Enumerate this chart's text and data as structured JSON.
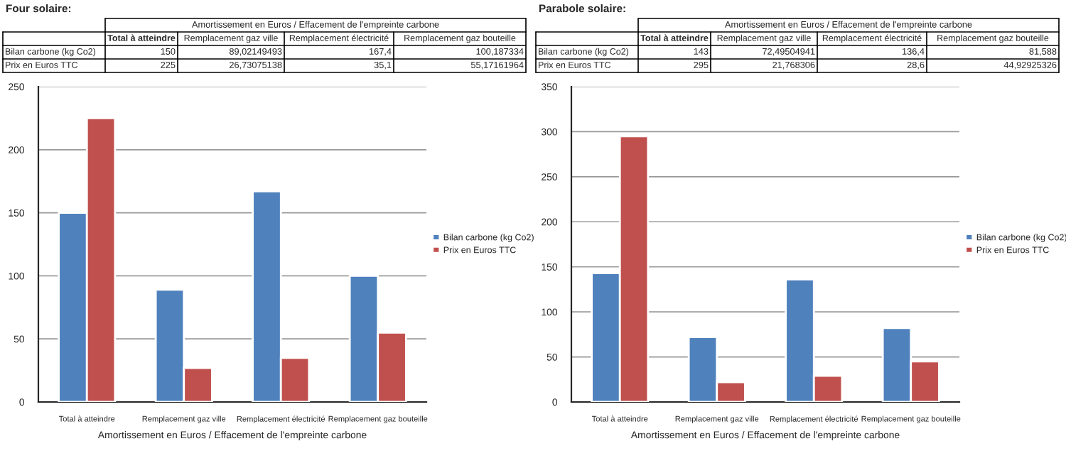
{
  "chart_data": [
    {
      "type": "other",
      "title": "Four solaire:",
      "subtitle": "Amortissement en Euros / Effacement de l'empreinte carbone",
      "categories": [
        "Total à atteindre",
        "Remplacement gaz ville",
        "Remplacement électricité",
        "Remplacement gaz bouteille"
      ],
      "annotations": [
        "Bilan carbone (kg Co2)",
        "150",
        "89,02149493",
        "167,4",
        "100,187334",
        "Prix en Euros TTC",
        "225",
        "26,73075138",
        "35,1",
        "55,17161964"
      ]
    },
    {
      "type": "bar",
      "xlabel": "Amortissement en Euros / Effacement de l'empreinte carbone",
      "categories": [
        "Total à atteindre",
        "Remplacement gaz ville",
        "Remplacement électricité",
        "Remplacement gaz bouteille"
      ],
      "series": [
        {
          "name": "Bilan carbone (kg Co2)",
          "color": "#4f81bd",
          "values": [
            150,
            89,
            167,
            100
          ]
        },
        {
          "name": "Prix en Euros TTC",
          "color": "#c0504d",
          "values": [
            225,
            27,
            35,
            55
          ]
        }
      ],
      "ylim": [
        0,
        250
      ],
      "yticks": [
        0,
        50,
        100,
        150,
        200,
        250
      ],
      "grid": "y",
      "legend": "right"
    },
    {
      "type": "other",
      "title": "Parabole solaire:",
      "subtitle": "Amortissement en Euros / Effacement de l'empreinte carbone",
      "categories": [
        "Total à atteindre",
        "Remplacement gaz ville",
        "Remplacement électricité",
        "Remplacement gaz bouteille"
      ],
      "annotations": [
        "Bilan carbone (kg Co2)",
        "143",
        "72,49504941",
        "136,4",
        "81,588",
        "Prix en Euros TTC",
        "295",
        "21,768306",
        "28,6",
        "44,92925326"
      ]
    },
    {
      "type": "bar",
      "xlabel": "Amortissement en Euros / Effacement de l'empreinte carbone",
      "categories": [
        "Total à atteindre",
        "Remplacement gaz ville",
        "Remplacement électricité",
        "Remplacement gaz bouteille"
      ],
      "series": [
        {
          "name": "Bilan carbone (kg Co2)",
          "color": "#4f81bd",
          "values": [
            143,
            72,
            136,
            82
          ]
        },
        {
          "name": "Prix en Euros TTC",
          "color": "#c0504d",
          "values": [
            295,
            22,
            29,
            45
          ]
        }
      ],
      "ylim": [
        0,
        350
      ],
      "yticks": [
        0,
        50,
        100,
        150,
        200,
        250,
        300,
        350
      ],
      "grid": "y",
      "legend": "right"
    }
  ]
}
